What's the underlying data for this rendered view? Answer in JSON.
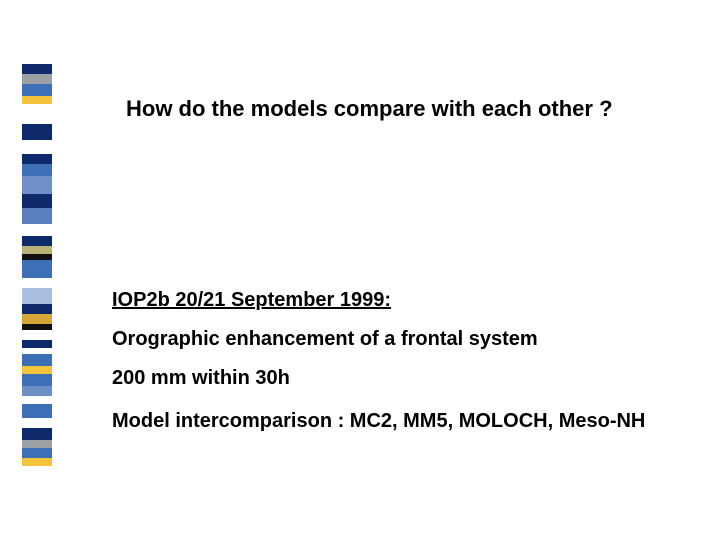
{
  "title": "How do the models compare with each other ?",
  "lines": {
    "iop": "IOP2b 20/21 September 1999:",
    "orographic": "Orographic enhancement of a frontal system",
    "mm200": "200 mm within 30h",
    "intercomp": "Model intercomparison : MC2, MM5, MOLOCH, Meso-NH"
  },
  "stripes": [
    {
      "color": "#0f2a6a",
      "h": 10
    },
    {
      "color": "#9aa0a4",
      "h": 10
    },
    {
      "color": "#3d6fb7",
      "h": 12
    },
    {
      "color": "#f2c33b",
      "h": 8
    },
    {
      "color": "#ffffff",
      "h": 20
    },
    {
      "color": "#0f2a6a",
      "h": 16
    },
    {
      "color": "#ffffff",
      "h": 14
    },
    {
      "color": "#0f2a6a",
      "h": 10
    },
    {
      "color": "#3d6fb7",
      "h": 12
    },
    {
      "color": "#6f8fc7",
      "h": 18
    },
    {
      "color": "#0f2a6a",
      "h": 14
    },
    {
      "color": "#5a7fc0",
      "h": 16
    },
    {
      "color": "#ffffff",
      "h": 12
    },
    {
      "color": "#0f2a6a",
      "h": 10
    },
    {
      "color": "#b8b274",
      "h": 8
    },
    {
      "color": "#111",
      "h": 6
    },
    {
      "color": "#3d6fb7",
      "h": 18
    },
    {
      "color": "#ffffff",
      "h": 10
    },
    {
      "color": "#a8bde0",
      "h": 16
    },
    {
      "color": "#0f2a6a",
      "h": 10
    },
    {
      "color": "#d6a637",
      "h": 10
    },
    {
      "color": "#111",
      "h": 6
    },
    {
      "color": "#ffffff",
      "h": 10
    },
    {
      "color": "#0f2a6a",
      "h": 8
    },
    {
      "color": "#ffffff",
      "h": 6
    },
    {
      "color": "#3d6fb7",
      "h": 12
    },
    {
      "color": "#f2c33b",
      "h": 8
    },
    {
      "color": "#3d6fb7",
      "h": 12
    },
    {
      "color": "#6f8fc7",
      "h": 10
    },
    {
      "color": "#ffffff",
      "h": 8
    },
    {
      "color": "#3d6fb7",
      "h": 14
    },
    {
      "color": "#ffffff",
      "h": 10
    },
    {
      "color": "#0f2a6a",
      "h": 12
    },
    {
      "color": "#9aa0a4",
      "h": 8
    },
    {
      "color": "#3d6fb7",
      "h": 10
    },
    {
      "color": "#f2c33b",
      "h": 8
    }
  ]
}
